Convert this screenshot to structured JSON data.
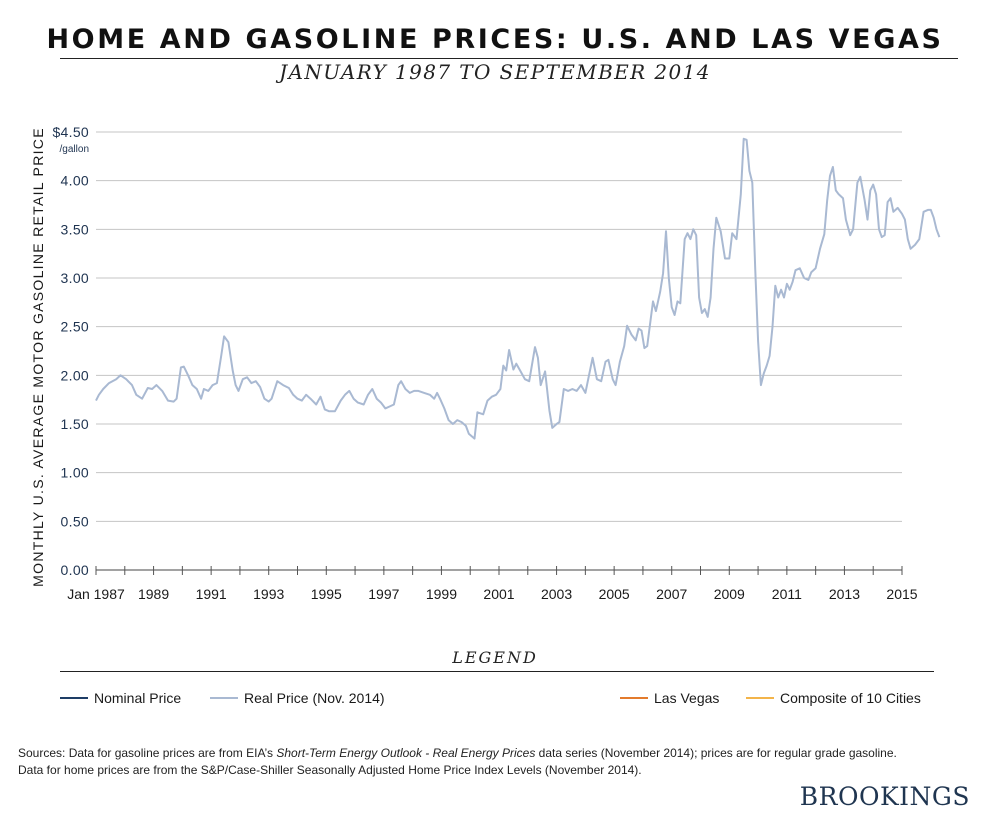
{
  "header": {
    "title": "HOME AND GASOLINE PRICES: U.S. AND LAS VEGAS",
    "subtitle": "JANUARY 1987 TO SEPTEMBER 2014"
  },
  "chart_data": {
    "type": "line",
    "ylabel": "MONTHLY U.S. AVERAGE MOTOR GASOLINE RETAIL PRICE",
    "y_unit": "/gallon",
    "ylim": [
      0,
      4.5
    ],
    "y_ticks": [
      "0.00",
      "0.50",
      "1.00",
      "1.50",
      "2.00",
      "2.50",
      "3.00",
      "3.50",
      "4.00",
      "$4.50"
    ],
    "xlim": [
      1987,
      2015
    ],
    "x_tick_labels": [
      "Jan 1987",
      "1989",
      "1991",
      "1993",
      "1995",
      "1997",
      "1999",
      "2001",
      "2003",
      "2005",
      "2007",
      "2009",
      "2011",
      "2013",
      "2015"
    ],
    "grid": "horizontal",
    "series": [
      {
        "name": "Real Price (Nov. 2014)",
        "color": "#a9b9d2",
        "points": [
          [
            1987.0,
            1.74
          ],
          [
            1987.1,
            1.8
          ],
          [
            1987.25,
            1.86
          ],
          [
            1987.45,
            1.92
          ],
          [
            1987.7,
            1.96
          ],
          [
            1987.85,
            2.0
          ],
          [
            1988.05,
            1.96
          ],
          [
            1988.25,
            1.9
          ],
          [
            1988.4,
            1.8
          ],
          [
            1988.6,
            1.76
          ],
          [
            1988.8,
            1.87
          ],
          [
            1988.95,
            1.86
          ],
          [
            1989.1,
            1.9
          ],
          [
            1989.3,
            1.84
          ],
          [
            1989.5,
            1.74
          ],
          [
            1989.7,
            1.73
          ],
          [
            1989.8,
            1.76
          ],
          [
            1989.95,
            2.08
          ],
          [
            1990.05,
            2.09
          ],
          [
            1990.2,
            2.0
          ],
          [
            1990.35,
            1.9
          ],
          [
            1990.5,
            1.86
          ],
          [
            1990.65,
            1.76
          ],
          [
            1990.75,
            1.86
          ],
          [
            1990.9,
            1.84
          ],
          [
            1991.05,
            1.9
          ],
          [
            1991.2,
            1.92
          ],
          [
            1991.35,
            2.2
          ],
          [
            1991.45,
            2.4
          ],
          [
            1991.6,
            2.34
          ],
          [
            1991.75,
            2.05
          ],
          [
            1991.85,
            1.9
          ],
          [
            1991.95,
            1.84
          ],
          [
            1992.1,
            1.96
          ],
          [
            1992.25,
            1.98
          ],
          [
            1992.4,
            1.92
          ],
          [
            1992.55,
            1.94
          ],
          [
            1992.7,
            1.88
          ],
          [
            1992.85,
            1.76
          ],
          [
            1993.0,
            1.73
          ],
          [
            1993.1,
            1.76
          ],
          [
            1993.3,
            1.94
          ],
          [
            1993.5,
            1.9
          ],
          [
            1993.7,
            1.87
          ],
          [
            1993.85,
            1.8
          ],
          [
            1994.0,
            1.76
          ],
          [
            1994.15,
            1.74
          ],
          [
            1994.3,
            1.8
          ],
          [
            1994.45,
            1.76
          ],
          [
            1994.65,
            1.7
          ],
          [
            1994.8,
            1.78
          ],
          [
            1994.95,
            1.65
          ],
          [
            1995.1,
            1.63
          ],
          [
            1995.3,
            1.63
          ],
          [
            1995.5,
            1.74
          ],
          [
            1995.65,
            1.8
          ],
          [
            1995.8,
            1.84
          ],
          [
            1995.95,
            1.76
          ],
          [
            1996.1,
            1.72
          ],
          [
            1996.3,
            1.7
          ],
          [
            1996.45,
            1.8
          ],
          [
            1996.6,
            1.86
          ],
          [
            1996.75,
            1.76
          ],
          [
            1996.9,
            1.72
          ],
          [
            1997.05,
            1.66
          ],
          [
            1997.2,
            1.68
          ],
          [
            1997.35,
            1.7
          ],
          [
            1997.5,
            1.9
          ],
          [
            1997.6,
            1.94
          ],
          [
            1997.75,
            1.86
          ],
          [
            1997.9,
            1.82
          ],
          [
            1998.05,
            1.84
          ],
          [
            1998.2,
            1.84
          ],
          [
            1998.4,
            1.82
          ],
          [
            1998.6,
            1.8
          ],
          [
            1998.75,
            1.76
          ],
          [
            1998.85,
            1.82
          ],
          [
            1998.95,
            1.76
          ],
          [
            1999.1,
            1.66
          ],
          [
            1999.25,
            1.54
          ],
          [
            1999.4,
            1.5
          ],
          [
            1999.55,
            1.54
          ],
          [
            1999.7,
            1.52
          ],
          [
            1999.85,
            1.48
          ],
          [
            1999.95,
            1.4
          ],
          [
            2000.15,
            1.35
          ],
          [
            2000.25,
            1.62
          ],
          [
            2000.45,
            1.6
          ],
          [
            2000.6,
            1.74
          ],
          [
            2000.75,
            1.78
          ],
          [
            2000.9,
            1.8
          ],
          [
            2001.05,
            1.86
          ],
          [
            2001.15,
            2.1
          ],
          [
            2001.25,
            2.05
          ],
          [
            2001.35,
            2.26
          ],
          [
            2001.5,
            2.06
          ],
          [
            2001.6,
            2.12
          ],
          [
            2001.75,
            2.04
          ],
          [
            2001.9,
            1.96
          ],
          [
            2002.05,
            1.94
          ],
          [
            2002.25,
            2.29
          ],
          [
            2002.35,
            2.18
          ],
          [
            2002.45,
            1.9
          ],
          [
            2002.6,
            2.04
          ],
          [
            2002.75,
            1.64
          ],
          [
            2002.85,
            1.46
          ],
          [
            2003.0,
            1.5
          ],
          [
            2003.1,
            1.52
          ],
          [
            2003.25,
            1.86
          ],
          [
            2003.4,
            1.84
          ],
          [
            2003.55,
            1.86
          ],
          [
            2003.7,
            1.84
          ],
          [
            2003.85,
            1.9
          ],
          [
            2004.0,
            1.82
          ],
          [
            2004.1,
            1.96
          ],
          [
            2004.25,
            2.18
          ],
          [
            2004.4,
            1.96
          ],
          [
            2004.55,
            1.94
          ],
          [
            2004.7,
            2.14
          ],
          [
            2004.8,
            2.16
          ],
          [
            2004.95,
            1.96
          ],
          [
            2005.05,
            1.9
          ],
          [
            2005.2,
            2.14
          ],
          [
            2005.35,
            2.3
          ],
          [
            2005.45,
            2.51
          ],
          [
            2005.6,
            2.42
          ],
          [
            2005.75,
            2.36
          ],
          [
            2005.85,
            2.48
          ],
          [
            2005.95,
            2.46
          ],
          [
            2006.05,
            2.28
          ],
          [
            2006.15,
            2.3
          ],
          [
            2006.35,
            2.76
          ],
          [
            2006.45,
            2.66
          ],
          [
            2006.6,
            2.86
          ],
          [
            2006.7,
            3.05
          ],
          [
            2006.8,
            3.48
          ],
          [
            2006.9,
            3.0
          ],
          [
            2007.0,
            2.7
          ],
          [
            2007.1,
            2.62
          ],
          [
            2007.2,
            2.76
          ],
          [
            2007.3,
            2.74
          ],
          [
            2007.45,
            3.4
          ],
          [
            2007.55,
            3.46
          ],
          [
            2007.65,
            3.4
          ],
          [
            2007.75,
            3.5
          ],
          [
            2007.85,
            3.44
          ],
          [
            2007.95,
            2.8
          ],
          [
            2008.05,
            2.64
          ],
          [
            2008.15,
            2.68
          ],
          [
            2008.25,
            2.6
          ],
          [
            2008.35,
            2.8
          ],
          [
            2008.45,
            3.3
          ],
          [
            2008.55,
            3.62
          ],
          [
            2008.7,
            3.48
          ],
          [
            2008.85,
            3.2
          ],
          [
            2009.0,
            3.2
          ],
          [
            2009.1,
            3.46
          ],
          [
            2009.25,
            3.4
          ],
          [
            2009.4,
            3.86
          ],
          [
            2009.5,
            4.43
          ],
          [
            2009.6,
            4.42
          ],
          [
            2009.7,
            4.1
          ],
          [
            2009.8,
            3.98
          ],
          [
            2009.9,
            3.1
          ],
          [
            2010.0,
            2.35
          ],
          [
            2010.1,
            1.9
          ],
          [
            2010.2,
            2.02
          ],
          [
            2010.3,
            2.1
          ],
          [
            2010.4,
            2.2
          ],
          [
            2010.5,
            2.5
          ],
          [
            2010.6,
            2.92
          ],
          [
            2010.7,
            2.8
          ],
          [
            2010.8,
            2.88
          ],
          [
            2010.9,
            2.8
          ],
          [
            2011.0,
            2.94
          ],
          [
            2011.1,
            2.88
          ],
          [
            2011.2,
            2.96
          ],
          [
            2011.3,
            3.08
          ],
          [
            2011.45,
            3.1
          ],
          [
            2011.6,
            3.0
          ],
          [
            2011.75,
            2.98
          ],
          [
            2011.85,
            3.06
          ],
          [
            2012.0,
            3.1
          ],
          [
            2012.15,
            3.3
          ],
          [
            2012.3,
            3.45
          ],
          [
            2012.4,
            3.8
          ],
          [
            2012.5,
            4.05
          ],
          [
            2012.6,
            4.14
          ],
          [
            2012.7,
            3.9
          ],
          [
            2012.8,
            3.86
          ],
          [
            2012.95,
            3.82
          ],
          [
            2013.05,
            3.6
          ],
          [
            2013.2,
            3.44
          ],
          [
            2013.3,
            3.5
          ],
          [
            2013.45,
            3.98
          ],
          [
            2013.55,
            4.04
          ],
          [
            2013.7,
            3.8
          ],
          [
            2013.8,
            3.6
          ],
          [
            2013.9,
            3.9
          ],
          [
            2014.0,
            3.96
          ],
          [
            2014.1,
            3.86
          ],
          [
            2014.2,
            3.5
          ],
          [
            2014.3,
            3.42
          ],
          [
            2014.4,
            3.44
          ],
          [
            2014.5,
            3.78
          ],
          [
            2014.6,
            3.82
          ],
          [
            2014.7,
            3.68
          ],
          [
            2014.85,
            3.72
          ],
          [
            2015.0,
            3.66
          ],
          [
            2015.1,
            3.6
          ],
          [
            2015.2,
            3.4
          ],
          [
            2015.3,
            3.3
          ],
          [
            2015.45,
            3.34
          ],
          [
            2015.6,
            3.4
          ],
          [
            2015.75,
            3.68
          ],
          [
            2015.9,
            3.7
          ],
          [
            2016.0,
            3.7
          ],
          [
            2016.1,
            3.62
          ],
          [
            2016.2,
            3.5
          ],
          [
            2016.3,
            3.42
          ]
        ]
      }
    ]
  },
  "legend": {
    "title": "LEGEND",
    "items": [
      {
        "label": "Nominal Price",
        "color": "#1e3d66"
      },
      {
        "label": "Real Price (Nov. 2014)",
        "color": "#a9b9d2"
      },
      {
        "label": "Las Vegas",
        "color": "#e37b2c"
      },
      {
        "label": "Composite of 10 Cities",
        "color": "#f3b44a"
      }
    ]
  },
  "sources": {
    "line1_pre": "Sources: Data for gasoline prices are from EIA’s ",
    "line1_em": "Short-Term Energy Outlook - Real Energy Prices",
    "line1_post": " data series (November 2014); prices are for regular grade gasoline.",
    "line2": "Data for home prices are from the S&P/Case-Shiller Seasonally Adjusted Home Price Index Levels (November 2014)."
  },
  "brand": "BROOKINGS"
}
